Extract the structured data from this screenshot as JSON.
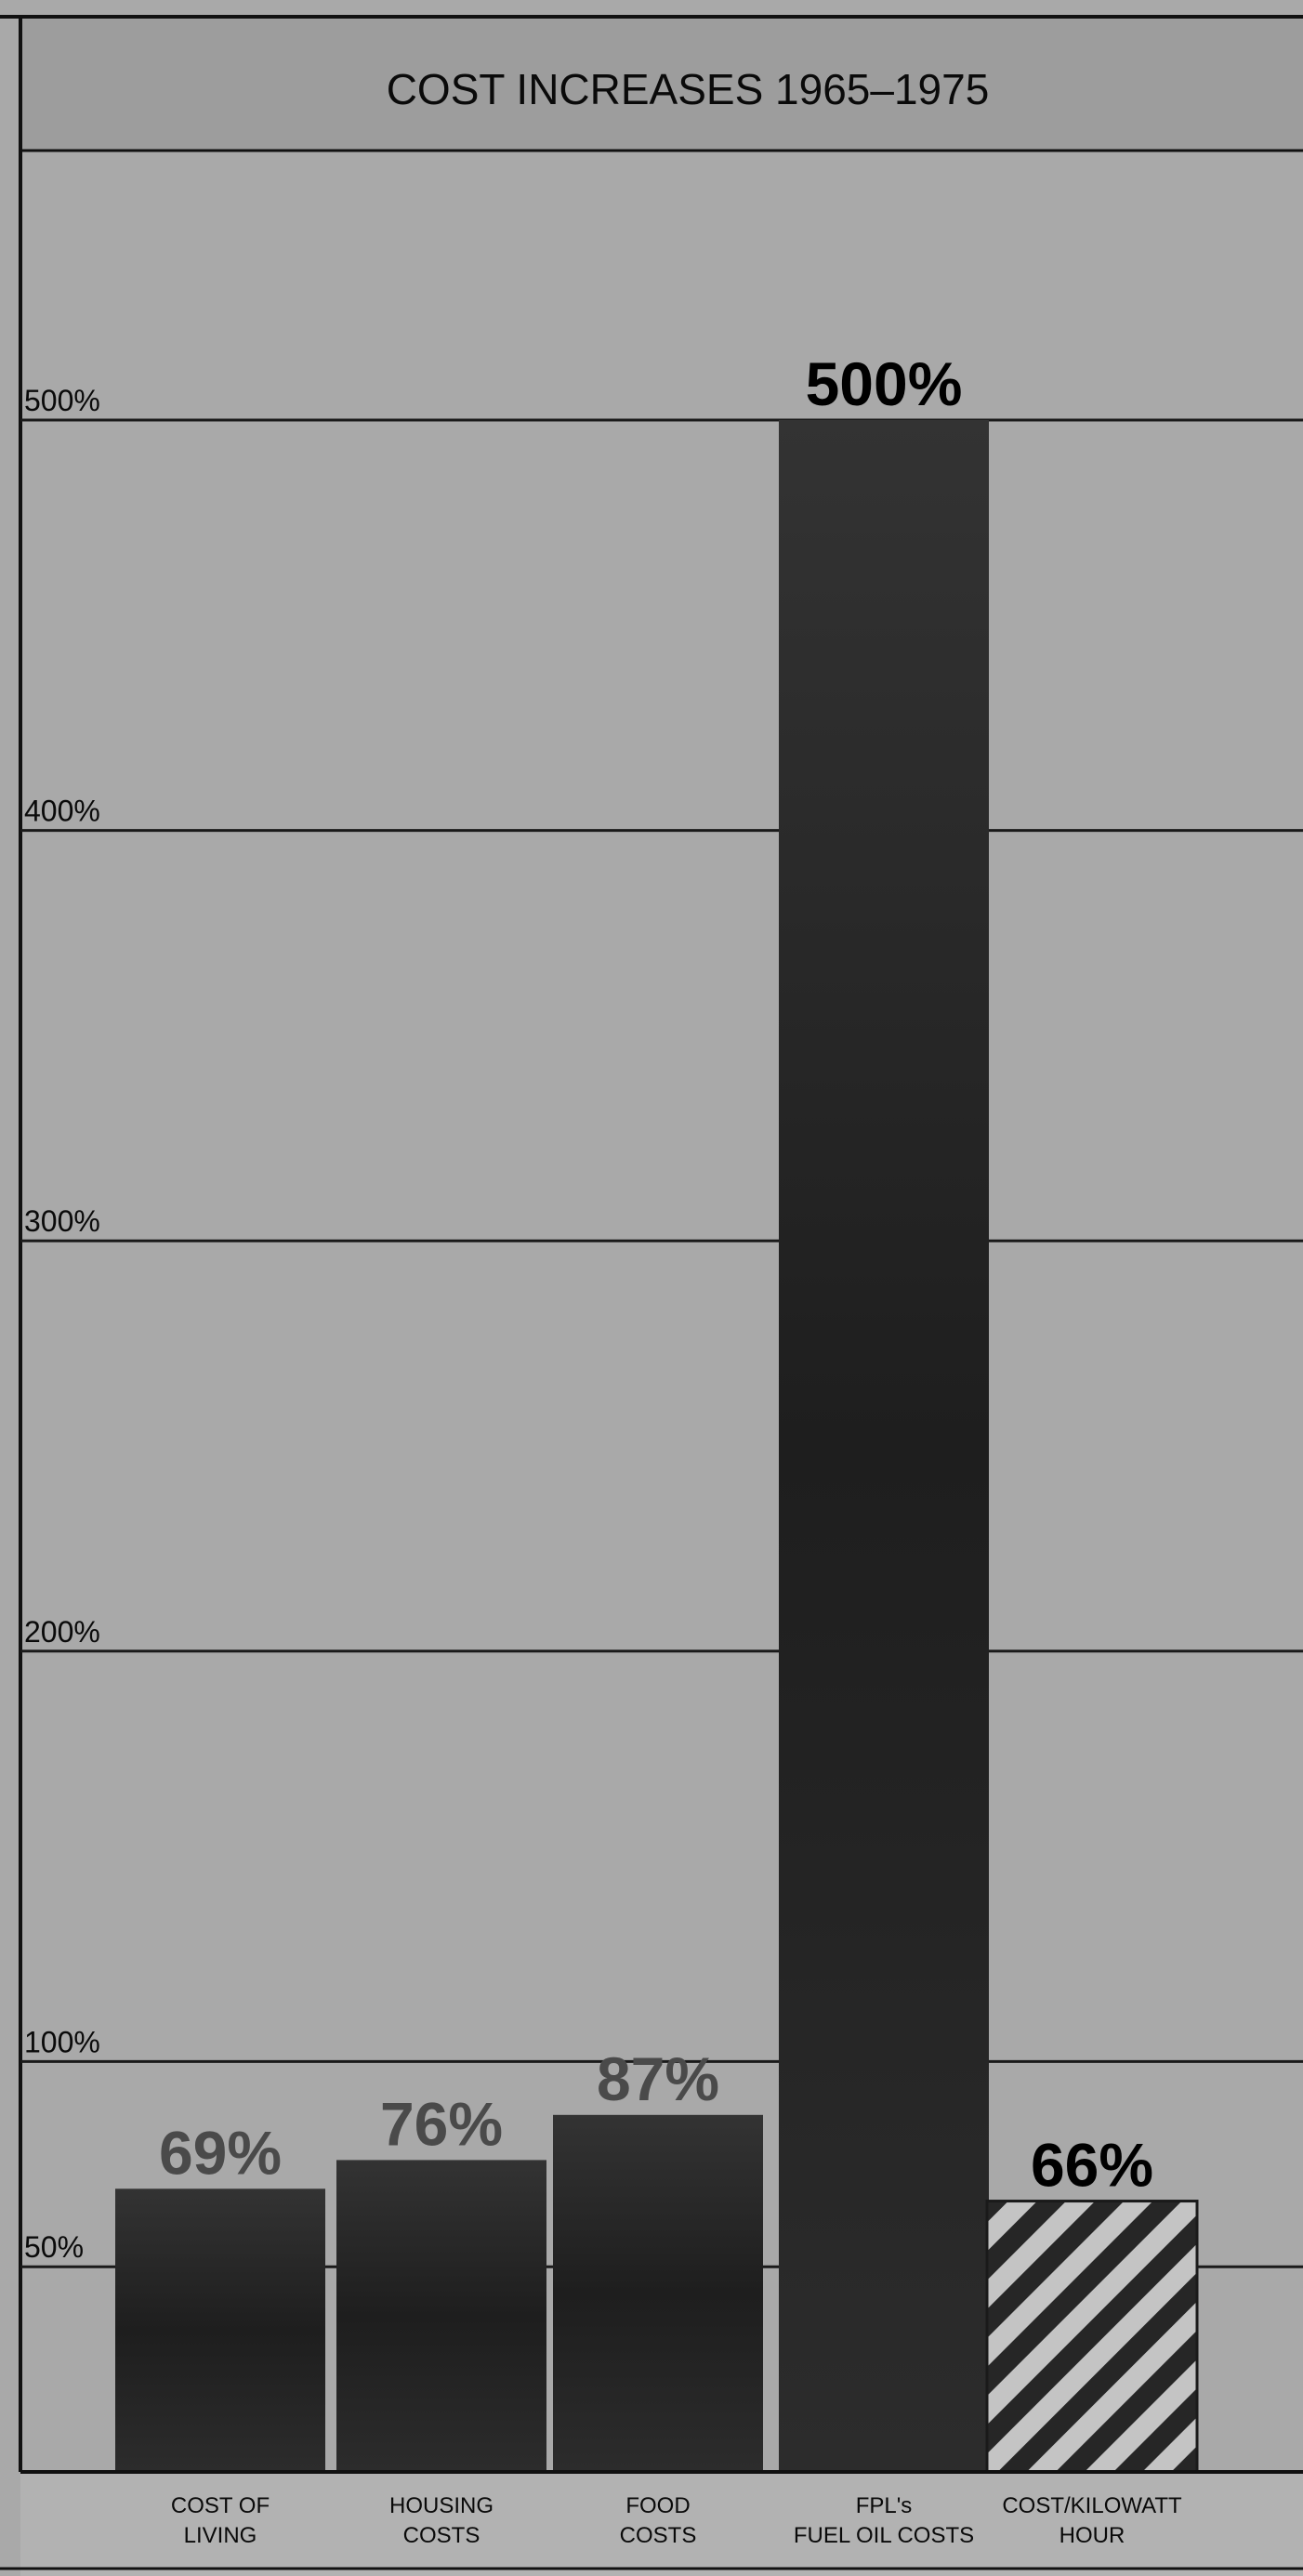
{
  "chart_data": {
    "type": "bar",
    "title": "COST INCREASES 1965–1975",
    "categories": [
      [
        "COST OF",
        "LIVING"
      ],
      [
        "HOUSING",
        "COSTS"
      ],
      [
        "FOOD",
        "COSTS"
      ],
      [
        "FPL's",
        "FUEL OIL COSTS"
      ],
      [
        "COST/KILOWATT",
        "HOUR"
      ]
    ],
    "values": [
      69,
      76,
      87,
      500,
      66
    ],
    "value_labels": [
      "69%",
      "76%",
      "87%",
      "500%",
      "66%"
    ],
    "y_ticks": [
      {
        "value": 50,
        "label": "50%"
      },
      {
        "value": 100,
        "label": "100%"
      },
      {
        "value": 200,
        "label": "200%"
      },
      {
        "value": 300,
        "label": "300%"
      },
      {
        "value": 400,
        "label": "400%"
      },
      {
        "value": 500,
        "label": "500%"
      }
    ],
    "ylim": [
      0,
      600
    ],
    "grid": true,
    "colors": {
      "background": "#a9a9a9",
      "bar_fill": "#262626",
      "highlight_label": "#000000",
      "value_label": "#4a4a4a",
      "hatch_light": "#c4c4c4",
      "grid": "#1a1a1a",
      "title_band": "#9d9d9d"
    },
    "hatched_index": 4
  }
}
